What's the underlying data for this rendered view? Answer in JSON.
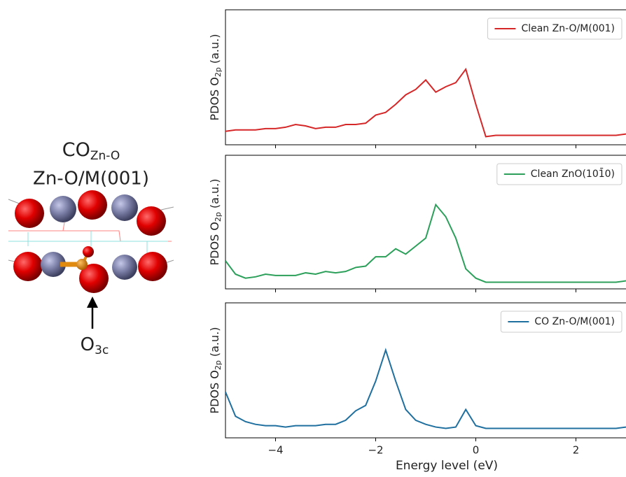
{
  "structure": {
    "title_main": "CO",
    "title_sub": "Zn-O",
    "subtitle": "Zn-O/M(001)",
    "arrow_label_main": "O",
    "arrow_label_sub": "3c"
  },
  "chart_data": [
    {
      "type": "line",
      "y_label": "PDOS  O",
      "y_label_sub": "2p",
      "y_label_unit": "(a.u.)",
      "legend": "upper right",
      "xlim": [
        -5,
        3
      ],
      "ylim": [
        0,
        1
      ],
      "xticks": [
        -4,
        -2,
        0,
        2
      ],
      "x": [
        -5,
        -4.8,
        -4.6,
        -4.4,
        -4.2,
        -4,
        -3.8,
        -3.6,
        -3.4,
        -3.2,
        -3,
        -2.8,
        -2.6,
        -2.4,
        -2.2,
        -2,
        -1.8,
        -1.6,
        -1.4,
        -1.2,
        -1,
        -0.8,
        -0.6,
        -0.4,
        -0.2,
        0,
        0.2,
        0.4,
        0.6,
        0.8,
        1,
        1.2,
        1.4,
        1.6,
        1.8,
        2,
        2.2,
        2.4,
        2.6,
        2.8,
        3
      ],
      "series": [
        {
          "name": "Clean Zn-O/M(001)",
          "color": "#d62728",
          "values": [
            0.1,
            0.11,
            0.11,
            0.11,
            0.12,
            0.12,
            0.13,
            0.15,
            0.14,
            0.12,
            0.13,
            0.13,
            0.15,
            0.15,
            0.16,
            0.22,
            0.24,
            0.3,
            0.37,
            0.41,
            0.48,
            0.39,
            0.43,
            0.46,
            0.56,
            0.3,
            0.06,
            0.07,
            0.07,
            0.07,
            0.07,
            0.07,
            0.07,
            0.07,
            0.07,
            0.07,
            0.07,
            0.07,
            0.07,
            0.07,
            0.08
          ]
        }
      ]
    },
    {
      "type": "line",
      "y_label": "PDOS  O",
      "y_label_sub": "2p",
      "y_label_unit": "(a.u.)",
      "legend": "upper right",
      "xlim": [
        -5,
        3
      ],
      "ylim": [
        0,
        1
      ],
      "xticks": [
        -4,
        -2,
        0,
        2
      ],
      "x": [
        -5,
        -4.8,
        -4.6,
        -4.4,
        -4.2,
        -4,
        -3.8,
        -3.6,
        -3.4,
        -3.2,
        -3,
        -2.8,
        -2.6,
        -2.4,
        -2.2,
        -2,
        -1.8,
        -1.6,
        -1.4,
        -1.2,
        -1,
        -0.8,
        -0.6,
        -0.4,
        -0.2,
        0,
        0.2,
        0.4,
        0.6,
        0.8,
        1,
        1.2,
        1.4,
        1.6,
        1.8,
        2,
        2.2,
        2.4,
        2.6,
        2.8,
        3
      ],
      "series": [
        {
          "name": "Clean ZnO(101̄0)",
          "color": "#2ca05a",
          "values": [
            0.21,
            0.11,
            0.08,
            0.09,
            0.11,
            0.1,
            0.1,
            0.1,
            0.12,
            0.11,
            0.13,
            0.12,
            0.13,
            0.16,
            0.17,
            0.24,
            0.24,
            0.3,
            0.26,
            0.32,
            0.38,
            0.63,
            0.54,
            0.38,
            0.15,
            0.08,
            0.05,
            0.05,
            0.05,
            0.05,
            0.05,
            0.05,
            0.05,
            0.05,
            0.05,
            0.05,
            0.05,
            0.05,
            0.05,
            0.05,
            0.06
          ]
        }
      ]
    },
    {
      "type": "line",
      "y_label": "PDOS  O",
      "y_label_sub": "2p",
      "y_label_unit": "(a.u.)",
      "x_label": "Energy level (eV)",
      "legend": "upper right",
      "xlim": [
        -5,
        3
      ],
      "ylim": [
        0,
        1
      ],
      "xticks": [
        {
          "value": -4,
          "label": "−4"
        },
        {
          "value": -2,
          "label": "−2"
        },
        0,
        2
      ],
      "x": [
        -5,
        -4.8,
        -4.6,
        -4.4,
        -4.2,
        -4,
        -3.8,
        -3.6,
        -3.4,
        -3.2,
        -3,
        -2.8,
        -2.6,
        -2.4,
        -2.2,
        -2,
        -1.8,
        -1.6,
        -1.4,
        -1.2,
        -1,
        -0.8,
        -0.6,
        -0.4,
        -0.2,
        0,
        0.2,
        0.4,
        0.6,
        0.8,
        1,
        1.2,
        1.4,
        1.6,
        1.8,
        2,
        2.2,
        2.4,
        2.6,
        2.8,
        3
      ],
      "series": [
        {
          "name": "CO Zn-O/M(001)",
          "color": "#1f6f9f",
          "values": [
            0.34,
            0.16,
            0.12,
            0.1,
            0.09,
            0.09,
            0.08,
            0.09,
            0.09,
            0.09,
            0.1,
            0.1,
            0.13,
            0.2,
            0.24,
            0.42,
            0.65,
            0.42,
            0.21,
            0.13,
            0.1,
            0.08,
            0.07,
            0.08,
            0.21,
            0.09,
            0.07,
            0.07,
            0.07,
            0.07,
            0.07,
            0.07,
            0.07,
            0.07,
            0.07,
            0.07,
            0.07,
            0.07,
            0.07,
            0.07,
            0.08
          ]
        }
      ]
    }
  ]
}
